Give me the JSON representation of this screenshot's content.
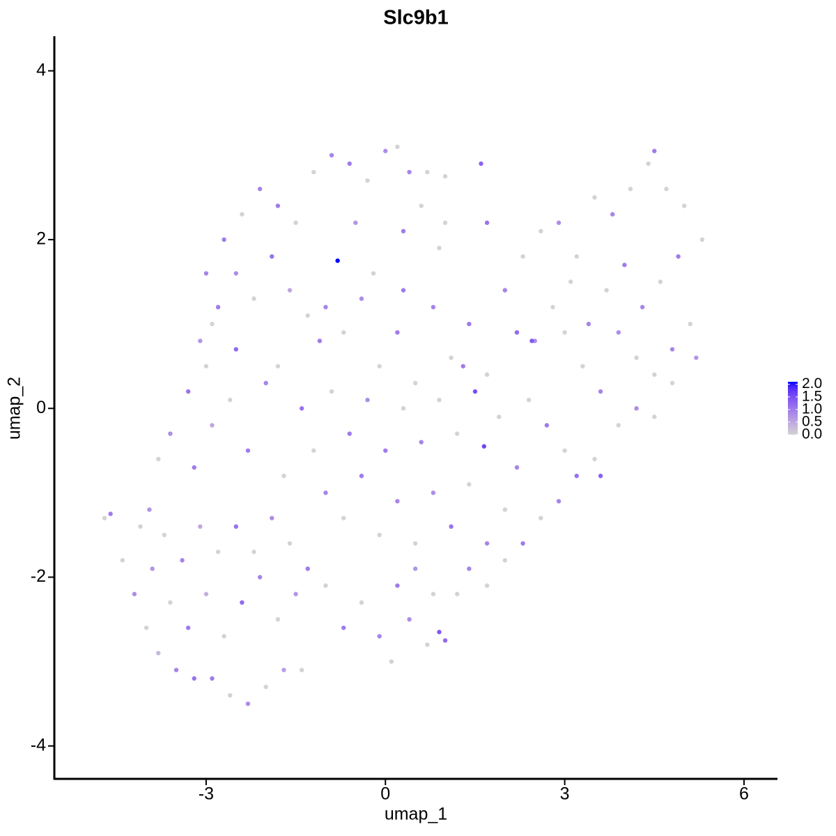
{
  "chart_data": {
    "type": "scatter",
    "title": "Slc9b1",
    "xlabel": "umap_1",
    "ylabel": "umap_2",
    "xlim": [
      -5.54,
      6.56
    ],
    "ylim": [
      -4.39,
      4.41
    ],
    "xticks": [
      -3,
      0,
      3,
      6
    ],
    "yticks": [
      -4,
      -2,
      0,
      2,
      4
    ],
    "low_color": "#d3d3d3",
    "high_color": "#0000ff",
    "colorlim": [
      0,
      2.1
    ],
    "colorticks": [
      {
        "value": 2,
        "label": "2.0"
      },
      {
        "value": 1.5,
        "label": "1.5"
      },
      {
        "value": 1,
        "label": "1.0"
      },
      {
        "value": 0.5,
        "label": "0.5"
      },
      {
        "value": 0,
        "label": "0.0"
      }
    ],
    "x": [
      -4.6,
      -4.7,
      -4.4,
      -4.2,
      -4.0,
      -3.8,
      -3.5,
      -3.2,
      -2.9,
      -2.6,
      -2.3,
      -2.0,
      -1.7,
      -1.4,
      -3.9,
      -3.6,
      -3.3,
      -3.0,
      -2.7,
      -2.4,
      -2.1,
      -1.8,
      -1.5,
      -3.7,
      -3.4,
      -3.1,
      -2.8,
      -2.5,
      -2.2,
      -1.9,
      -1.6,
      -1.3,
      -4.1,
      -3.95,
      -3.6,
      -3.8,
      -3.3,
      -3.0,
      -3.2,
      -2.9,
      -2.6,
      -2.3,
      -2.0,
      -1.7,
      -1.4,
      -3.1,
      -2.8,
      -2.5,
      -2.2,
      -1.9,
      -1.6,
      -1.3,
      -3.0,
      -2.7,
      -2.4,
      -2.1,
      -1.8,
      -1.5,
      -2.9,
      -2.5,
      -1.8,
      -1.1,
      -1.2,
      -1.2,
      -0.9,
      -0.6,
      -0.3,
      0.0,
      0.2,
      0.4,
      0.7,
      1.0,
      1.6,
      -0.8,
      -0.5,
      0.3,
      0.6,
      0.9,
      -0.2,
      0.3,
      1.0,
      1.7,
      -1.0,
      -0.7,
      -0.4,
      -0.1,
      0.2,
      0.5,
      0.8,
      1.1,
      1.4,
      1.7,
      -0.9,
      -0.6,
      -0.3,
      0.0,
      0.3,
      0.6,
      0.9,
      1.2,
      1.5,
      1.65,
      1.9,
      -1.0,
      -0.7,
      -0.4,
      -0.1,
      0.2,
      0.5,
      0.8,
      1.1,
      1.4,
      1.7,
      2.0,
      -1.0,
      -0.7,
      -0.4,
      -0.1,
      0.1,
      0.4,
      0.7,
      0.9,
      1.0,
      1.2,
      0.2,
      0.5,
      0.8,
      1.4,
      1.7,
      2.0,
      2.3,
      2.6,
      2.9,
      3.2,
      3.5,
      3.6,
      3.9,
      4.2,
      4.5,
      4.8,
      3.0,
      2.7,
      2.4,
      2.2,
      3.6,
      3.3,
      3.0,
      2.0,
      2.3,
      2.6,
      2.9,
      3.2,
      3.5,
      3.8,
      4.1,
      4.4,
      4.5,
      4.7,
      5.0,
      5.3,
      4.9,
      4.6,
      4.3,
      4.0,
      3.7,
      3.4,
      3.1,
      2.8,
      2.5,
      5.1,
      4.8,
      4.5,
      4.2,
      3.9,
      5.2,
      2.2,
      2.45,
      1.3
    ],
    "y": [
      -1.25,
      -1.3,
      -1.8,
      -2.2,
      -2.6,
      -2.9,
      -3.1,
      -3.2,
      -3.2,
      -3.4,
      -3.5,
      -3.3,
      -3.1,
      -3.1,
      -1.9,
      -2.3,
      -2.6,
      -2.2,
      -2.7,
      -2.3,
      -2.0,
      -2.5,
      -2.2,
      -1.5,
      -1.8,
      -1.4,
      -1.7,
      -1.4,
      -1.7,
      -1.3,
      -1.6,
      -1.9,
      -1.4,
      -1.2,
      -0.3,
      -0.6,
      0.2,
      0.5,
      -0.7,
      -0.2,
      0.1,
      -0.5,
      0.3,
      -0.8,
      0.0,
      0.8,
      1.2,
      1.6,
      1.3,
      1.8,
      1.4,
      1.1,
      1.6,
      2.0,
      2.3,
      2.6,
      2.4,
      2.2,
      1.0,
      0.7,
      0.5,
      0.8,
      -0.5,
      2.8,
      3.0,
      2.9,
      2.7,
      3.05,
      3.1,
      2.8,
      2.8,
      2.75,
      2.9,
      1.75,
      2.2,
      2.1,
      2.4,
      1.9,
      1.6,
      1.4,
      2.2,
      2.2,
      1.2,
      0.9,
      1.3,
      0.5,
      0.9,
      0.3,
      1.2,
      0.6,
      1.0,
      0.4,
      0.2,
      -0.3,
      0.1,
      -0.5,
      0.0,
      -0.4,
      0.1,
      -0.3,
      0.2,
      -0.45,
      -0.1,
      -1.0,
      -1.3,
      -0.8,
      -1.5,
      -1.1,
      -1.6,
      -1.0,
      -1.4,
      -0.9,
      -1.6,
      -1.2,
      -2.1,
      -2.6,
      -2.3,
      -2.7,
      -3.0,
      -2.5,
      -2.8,
      -2.65,
      -2.75,
      -2.2,
      -2.1,
      -1.9,
      -2.2,
      -1.9,
      -2.1,
      -1.8,
      -1.6,
      -1.3,
      -1.1,
      -0.8,
      -0.6,
      -0.8,
      -0.2,
      0.0,
      -0.1,
      0.3,
      -0.5,
      -0.2,
      0.1,
      -0.7,
      0.2,
      0.5,
      0.9,
      1.4,
      1.8,
      2.1,
      2.2,
      1.8,
      2.5,
      2.3,
      2.6,
      2.9,
      3.05,
      2.6,
      2.4,
      2.0,
      1.8,
      1.5,
      1.2,
      1.7,
      1.4,
      1.0,
      1.5,
      1.2,
      0.8,
      1.0,
      0.7,
      0.4,
      0.6,
      0.9,
      0.6,
      0.9,
      0.8,
      0.5
    ],
    "values": [
      1.0,
      0,
      0,
      0.8,
      0,
      0.3,
      0.9,
      1.1,
      1.0,
      0,
      0.8,
      0,
      0.6,
      0,
      0.7,
      0,
      1.0,
      0.4,
      0,
      1.2,
      0.9,
      0,
      0.7,
      0,
      0.9,
      0.5,
      0,
      1.1,
      0,
      0.8,
      0,
      1.0,
      0,
      0.7,
      0.8,
      0,
      1.1,
      0,
      1.0,
      0.5,
      0,
      1.0,
      0.9,
      0,
      1.1,
      0.7,
      1.0,
      0.8,
      0,
      1.1,
      0.5,
      0,
      0.9,
      1.0,
      0,
      0.9,
      1.0,
      0,
      0,
      1.2,
      0,
      1.0,
      0,
      0,
      0.9,
      1.0,
      0,
      0.8,
      0,
      0.9,
      0,
      0,
      1.3,
      2.1,
      0.7,
      1.0,
      0,
      0,
      0,
      1.0,
      0,
      1.1,
      0.9,
      0,
      0.8,
      0,
      1.0,
      0,
      0.9,
      0,
      1.0,
      0,
      0,
      1.0,
      0.8,
      1.0,
      0,
      0.9,
      0,
      0,
      1.5,
      1.6,
      0,
      0.9,
      0,
      1.0,
      0,
      0.9,
      0,
      0.8,
      1.1,
      0,
      0.9,
      0,
      0,
      1.0,
      0,
      0.9,
      0,
      0.8,
      0,
      1.4,
      1.2,
      0,
      1.0,
      0.7,
      0,
      0.9,
      0,
      0,
      1.0,
      0,
      0.9,
      1.1,
      0,
      1.3,
      0,
      0.8,
      0,
      0,
      0,
      1.0,
      0,
      0.9,
      0.9,
      0,
      0,
      0.9,
      0,
      0,
      0.8,
      0,
      0,
      0.9,
      0,
      0,
      1.0,
      0,
      0,
      0,
      1.0,
      0,
      0.9,
      1.0,
      0,
      0.9,
      0,
      0,
      0.8,
      0,
      0.9,
      0,
      0,
      0.8,
      0.7,
      1.2,
      1.4,
      1.0
    ]
  }
}
